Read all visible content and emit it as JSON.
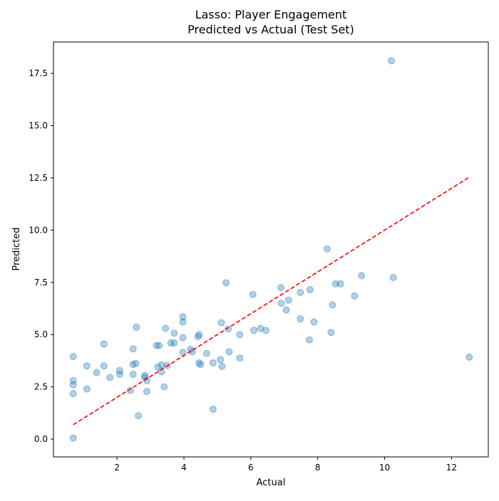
{
  "chart_data": {
    "type": "scatter",
    "title_line1": "Lasso: Player Engagement",
    "title_line2": "Predicted vs Actual (Test Set)",
    "xlabel": "Actual",
    "ylabel": "Predicted",
    "xlim": [
      0.1,
      13.1
    ],
    "ylim": [
      -0.85,
      19.0
    ],
    "x_ticks": [
      2,
      4,
      6,
      8,
      10,
      12
    ],
    "x_tick_labels": [
      "2",
      "4",
      "6",
      "8",
      "10",
      "12"
    ],
    "y_ticks": [
      0.0,
      2.5,
      5.0,
      7.5,
      10.0,
      12.5,
      15.0,
      17.5
    ],
    "y_tick_labels": [
      "0.0",
      "2.5",
      "5.0",
      "7.5",
      "10.0",
      "12.5",
      "15.0",
      "17.5"
    ],
    "grid": false,
    "point_color": "#1f77b4",
    "point_alpha": 0.35,
    "reference_line": {
      "x": [
        0.69,
        12.53
      ],
      "y": [
        0.69,
        12.53
      ],
      "color": "#ff0000",
      "style": "dashed"
    },
    "points": [
      {
        "x": 0.69,
        "y": 0.05
      },
      {
        "x": 0.69,
        "y": 2.18
      },
      {
        "x": 0.69,
        "y": 2.6
      },
      {
        "x": 0.69,
        "y": 2.8
      },
      {
        "x": 0.69,
        "y": 3.95
      },
      {
        "x": 1.1,
        "y": 2.4
      },
      {
        "x": 1.1,
        "y": 3.5
      },
      {
        "x": 1.39,
        "y": 3.18
      },
      {
        "x": 1.61,
        "y": 3.5
      },
      {
        "x": 1.61,
        "y": 4.55
      },
      {
        "x": 1.79,
        "y": 2.95
      },
      {
        "x": 2.08,
        "y": 3.1
      },
      {
        "x": 2.08,
        "y": 3.28
      },
      {
        "x": 2.4,
        "y": 2.33
      },
      {
        "x": 2.48,
        "y": 3.1
      },
      {
        "x": 2.48,
        "y": 3.57
      },
      {
        "x": 2.48,
        "y": 4.32
      },
      {
        "x": 2.56,
        "y": 3.62
      },
      {
        "x": 2.58,
        "y": 5.35
      },
      {
        "x": 2.64,
        "y": 1.12
      },
      {
        "x": 2.83,
        "y": 2.95
      },
      {
        "x": 2.83,
        "y": 3.05
      },
      {
        "x": 2.89,
        "y": 2.28
      },
      {
        "x": 2.89,
        "y": 2.8
      },
      {
        "x": 3.18,
        "y": 4.48
      },
      {
        "x": 3.22,
        "y": 3.45
      },
      {
        "x": 3.26,
        "y": 4.48
      },
      {
        "x": 3.33,
        "y": 3.22
      },
      {
        "x": 3.33,
        "y": 3.55
      },
      {
        "x": 3.41,
        "y": 2.5
      },
      {
        "x": 3.45,
        "y": 5.3
      },
      {
        "x": 3.5,
        "y": 3.52
      },
      {
        "x": 3.61,
        "y": 4.6
      },
      {
        "x": 3.71,
        "y": 4.6
      },
      {
        "x": 3.71,
        "y": 5.07
      },
      {
        "x": 3.97,
        "y": 4.85
      },
      {
        "x": 3.97,
        "y": 5.6
      },
      {
        "x": 3.97,
        "y": 5.85
      },
      {
        "x": 3.97,
        "y": 4.15
      },
      {
        "x": 4.2,
        "y": 4.3
      },
      {
        "x": 4.25,
        "y": 4.18
      },
      {
        "x": 4.42,
        "y": 4.9
      },
      {
        "x": 4.45,
        "y": 3.65
      },
      {
        "x": 4.45,
        "y": 5.0
      },
      {
        "x": 4.5,
        "y": 3.57
      },
      {
        "x": 4.68,
        "y": 4.1
      },
      {
        "x": 4.87,
        "y": 1.43
      },
      {
        "x": 4.87,
        "y": 3.65
      },
      {
        "x": 5.09,
        "y": 3.8
      },
      {
        "x": 5.12,
        "y": 5.57
      },
      {
        "x": 5.14,
        "y": 3.48
      },
      {
        "x": 5.26,
        "y": 7.48
      },
      {
        "x": 5.32,
        "y": 5.27
      },
      {
        "x": 5.35,
        "y": 4.18
      },
      {
        "x": 5.67,
        "y": 3.88
      },
      {
        "x": 5.67,
        "y": 5.0
      },
      {
        "x": 6.06,
        "y": 6.92
      },
      {
        "x": 6.09,
        "y": 5.2
      },
      {
        "x": 6.29,
        "y": 5.3
      },
      {
        "x": 6.45,
        "y": 5.2
      },
      {
        "x": 6.9,
        "y": 7.25
      },
      {
        "x": 6.91,
        "y": 6.5
      },
      {
        "x": 7.06,
        "y": 6.18
      },
      {
        "x": 7.13,
        "y": 6.65
      },
      {
        "x": 7.48,
        "y": 5.75
      },
      {
        "x": 7.48,
        "y": 7.02
      },
      {
        "x": 7.75,
        "y": 4.75
      },
      {
        "x": 7.77,
        "y": 7.15
      },
      {
        "x": 7.89,
        "y": 5.6
      },
      {
        "x": 8.28,
        "y": 9.1
      },
      {
        "x": 8.4,
        "y": 5.1
      },
      {
        "x": 8.44,
        "y": 6.42
      },
      {
        "x": 8.53,
        "y": 7.43
      },
      {
        "x": 8.68,
        "y": 7.43
      },
      {
        "x": 9.1,
        "y": 6.85
      },
      {
        "x": 9.31,
        "y": 7.82
      },
      {
        "x": 10.2,
        "y": 18.1
      },
      {
        "x": 10.26,
        "y": 7.73
      },
      {
        "x": 12.53,
        "y": 3.92
      }
    ]
  }
}
